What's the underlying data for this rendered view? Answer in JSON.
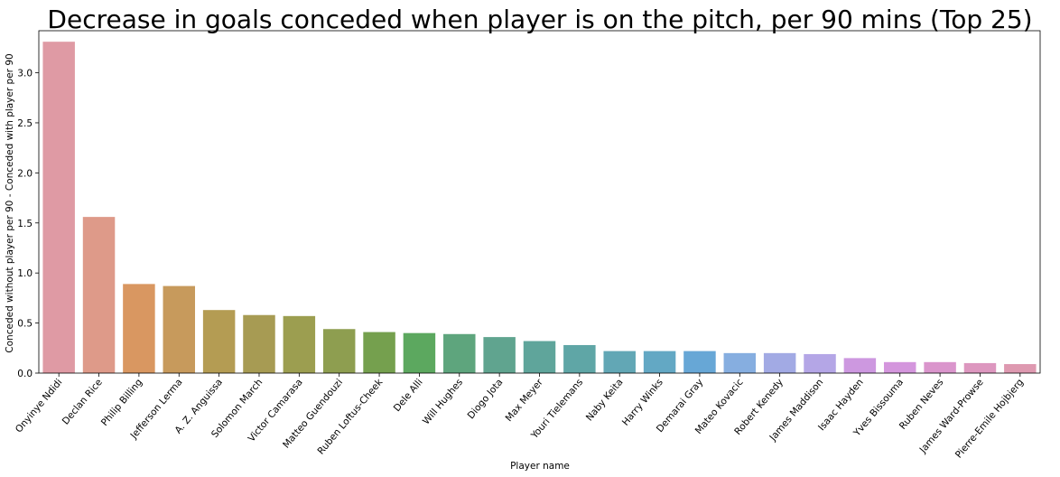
{
  "chart_data": {
    "type": "bar",
    "title": "Decrease in goals conceded when player is on the pitch, per 90 mins (Top 25)",
    "xlabel": "Player name",
    "ylabel": "Conceded without player per 90 - Conceded with player per 90",
    "ylim": [
      0,
      3.42
    ],
    "yticks": [
      "0.0",
      "0.5",
      "1.0",
      "1.5",
      "2.0",
      "2.5",
      "3.0"
    ],
    "grid": false,
    "categories": [
      "Onyinye Ndidi",
      "Declan Rice",
      "Philip Billing",
      "Jefferson Lerma",
      "A. Z. Anguissa",
      "Solomon March",
      "Victor Camarasa",
      "Matteo Guendouzi",
      "Ruben Loftus-Cheek",
      "Dele Alli",
      "Will Hughes",
      "Diogo Jota",
      "Max Meyer",
      "Youri Tielemans",
      "Naby Keita",
      "Harry Winks",
      "Demarai Gray",
      "Mateo Kovacic",
      "Robert Kenedy",
      "James Maddison",
      "Isaac Hayden",
      "Yves Bissouma",
      "Ruben Neves",
      "James Ward-Prowse",
      "Pierre-Emile Hojbjerg"
    ],
    "values": [
      3.31,
      1.56,
      0.89,
      0.87,
      0.63,
      0.58,
      0.57,
      0.44,
      0.41,
      0.4,
      0.39,
      0.36,
      0.32,
      0.28,
      0.22,
      0.22,
      0.22,
      0.2,
      0.2,
      0.19,
      0.15,
      0.11,
      0.11,
      0.1,
      0.09
    ],
    "colors": [
      "#df9aa4",
      "#de9a89",
      "#d99761",
      "#c79a5c",
      "#b49c53",
      "#a79b53",
      "#9c9e50",
      "#8e9e50",
      "#75a04e",
      "#5ca85f",
      "#5ea57d",
      "#60a48f",
      "#5fa59b",
      "#5fa6a6",
      "#62a7b5",
      "#63a8c4",
      "#67a7d6",
      "#86aee0",
      "#a2aae4",
      "#b4a6e6",
      "#cd98e0",
      "#d496dd",
      "#da95cc",
      "#dd97bf",
      "#de99b0"
    ]
  }
}
